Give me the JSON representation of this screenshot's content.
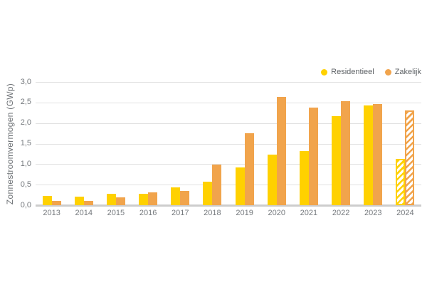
{
  "chart_data": {
    "type": "bar",
    "title": "",
    "ylabel": "Zonnestroomvermogen (GWp)",
    "xlabel": "",
    "categories": [
      "2013",
      "2014",
      "2015",
      "2016",
      "2017",
      "2018",
      "2019",
      "2020",
      "2021",
      "2022",
      "2023",
      "2024"
    ],
    "series": [
      {
        "name": "Residentieel",
        "color": "#FFD100",
        "values": [
          0.22,
          0.21,
          0.28,
          0.27,
          0.43,
          0.58,
          0.92,
          1.24,
          1.32,
          2.16,
          2.43,
          1.12
        ]
      },
      {
        "name": "Zakelijk",
        "color": "#F1A44C",
        "values": [
          0.1,
          0.11,
          0.19,
          0.31,
          0.35,
          0.99,
          1.75,
          2.63,
          2.37,
          2.53,
          2.47,
          2.31
        ]
      }
    ],
    "hatched_categories": [
      "2024"
    ],
    "hatched_meaning": "forecast",
    "ylim": [
      0,
      3
    ],
    "ytick_labels": [
      "0,0",
      "0,5",
      "1,0",
      "1,5",
      "2,0",
      "2,5",
      "3,0"
    ],
    "decimal_separator": ",",
    "grid": true,
    "legend_position": "top-right"
  },
  "colors": {
    "gridline": "#e1e1e1",
    "baseline": "#cdcdcd",
    "tick_text": "#75797d",
    "legend_text": "#5d6165",
    "background": "#ffffff"
  }
}
